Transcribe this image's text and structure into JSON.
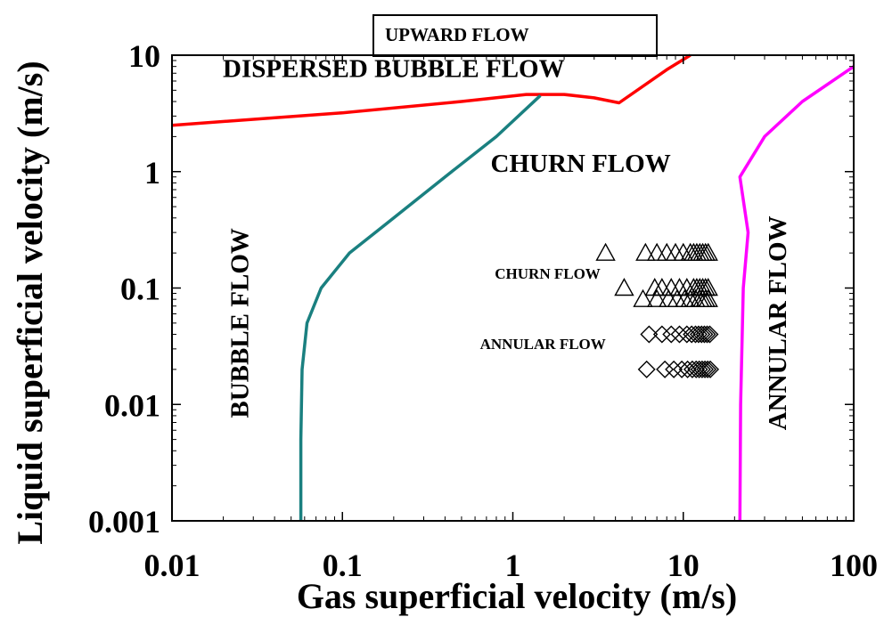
{
  "chart_data": {
    "type": "scatter",
    "title": "UPWARD FLOW",
    "xlabel": "Gas superficial velocity (m/s)",
    "ylabel": "Liquid superficial velocity (m/s)",
    "xscale": "log",
    "yscale": "log",
    "xlim": [
      0.01,
      100
    ],
    "ylim": [
      0.001,
      10
    ],
    "xticks": [
      "0.01",
      "0.1",
      "1",
      "10",
      "100"
    ],
    "yticks": [
      "0.001",
      "0.01",
      "0.1",
      "1",
      "10"
    ],
    "grid": false,
    "regions": [
      {
        "label": "DISPERSED BUBBLE FLOW",
        "x": 0.2,
        "y": 6.5
      },
      {
        "label": "CHURN FLOW",
        "x": 2.5,
        "y": 1.0
      },
      {
        "label": "BUBBLE FLOW",
        "x": 0.028,
        "y": 0.05,
        "rotate": -90
      },
      {
        "label": "ANNULAR FLOW",
        "x": 40,
        "y": 0.05,
        "rotate": -90
      }
    ],
    "boundaries": [
      {
        "color": "#ff0000",
        "points": [
          [
            0.01,
            2.5
          ],
          [
            0.1,
            3.2
          ],
          [
            0.5,
            4.0
          ],
          [
            1.2,
            4.6
          ],
          [
            2.0,
            4.6
          ],
          [
            3.0,
            4.3
          ],
          [
            4.2,
            3.9
          ],
          [
            8.0,
            7.5
          ],
          [
            11.0,
            10.0
          ]
        ]
      },
      {
        "color": "#1a8080",
        "points": [
          [
            0.057,
            0.001
          ],
          [
            0.057,
            0.005
          ],
          [
            0.058,
            0.02
          ],
          [
            0.062,
            0.05
          ],
          [
            0.075,
            0.1
          ],
          [
            0.11,
            0.2
          ],
          [
            0.2,
            0.4
          ],
          [
            0.4,
            0.9
          ],
          [
            0.8,
            2.0
          ],
          [
            1.45,
            4.5
          ]
        ]
      },
      {
        "color": "#ff00ff",
        "points": [
          [
            21.5,
            0.001
          ],
          [
            21.7,
            0.01
          ],
          [
            22.5,
            0.1
          ],
          [
            24,
            0.3
          ],
          [
            21.5,
            0.9
          ],
          [
            30,
            2.0
          ],
          [
            50,
            4.0
          ],
          [
            100,
            8.0
          ]
        ]
      }
    ],
    "series": [
      {
        "name": "CHURN FLOW",
        "marker": "triangle",
        "points": [
          [
            3.5,
            0.2
          ],
          [
            6.0,
            0.2
          ],
          [
            7.0,
            0.2
          ],
          [
            8.0,
            0.2
          ],
          [
            9.0,
            0.2
          ],
          [
            10.0,
            0.2
          ],
          [
            11.0,
            0.2
          ],
          [
            11.5,
            0.2
          ],
          [
            12.0,
            0.2
          ],
          [
            12.5,
            0.2
          ],
          [
            13.0,
            0.2
          ],
          [
            13.5,
            0.2
          ],
          [
            14.0,
            0.2
          ],
          [
            4.5,
            0.1
          ],
          [
            6.8,
            0.1
          ],
          [
            7.5,
            0.1
          ],
          [
            8.5,
            0.1
          ],
          [
            9.5,
            0.1
          ],
          [
            10.5,
            0.1
          ],
          [
            11.5,
            0.1
          ],
          [
            12.0,
            0.1
          ],
          [
            12.5,
            0.1
          ],
          [
            13.0,
            0.1
          ],
          [
            13.5,
            0.1
          ],
          [
            14.0,
            0.1
          ],
          [
            5.8,
            0.08
          ],
          [
            7.0,
            0.08
          ],
          [
            8.2,
            0.08
          ],
          [
            9.2,
            0.08
          ],
          [
            10.2,
            0.08
          ],
          [
            11.0,
            0.08
          ],
          [
            11.8,
            0.08
          ],
          [
            12.5,
            0.08
          ],
          [
            13.0,
            0.08
          ],
          [
            13.5,
            0.08
          ],
          [
            14.0,
            0.08
          ]
        ]
      },
      {
        "name": "ANNULAR FLOW",
        "marker": "diamond",
        "points": [
          [
            6.3,
            0.04
          ],
          [
            7.5,
            0.04
          ],
          [
            8.5,
            0.04
          ],
          [
            9.5,
            0.04
          ],
          [
            10.5,
            0.04
          ],
          [
            11.2,
            0.04
          ],
          [
            11.8,
            0.04
          ],
          [
            12.3,
            0.04
          ],
          [
            12.8,
            0.04
          ],
          [
            13.3,
            0.04
          ],
          [
            13.8,
            0.04
          ],
          [
            14.3,
            0.04
          ],
          [
            6.1,
            0.02
          ],
          [
            7.8,
            0.02
          ],
          [
            8.8,
            0.02
          ],
          [
            9.8,
            0.02
          ],
          [
            10.6,
            0.02
          ],
          [
            11.3,
            0.02
          ],
          [
            11.9,
            0.02
          ],
          [
            12.4,
            0.02
          ],
          [
            12.9,
            0.02
          ],
          [
            13.4,
            0.02
          ],
          [
            13.9,
            0.02
          ],
          [
            14.4,
            0.02
          ]
        ]
      }
    ],
    "series_labels": [
      {
        "text": "CHURN FLOW",
        "x": 1.6,
        "y": 0.12
      },
      {
        "text": "ANNULAR FLOW",
        "x": 1.5,
        "y": 0.03
      }
    ]
  }
}
